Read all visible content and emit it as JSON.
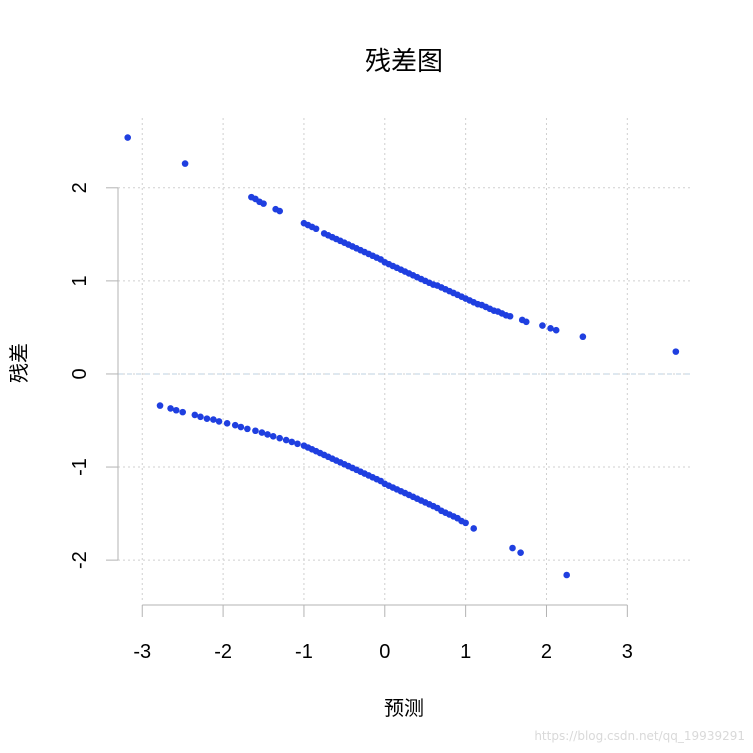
{
  "chart_data": {
    "type": "scatter",
    "title": "残差图",
    "xlabel": "预测",
    "ylabel": "残差",
    "xlim": [
      -3.3,
      3.8
    ],
    "ylim": [
      -2.45,
      2.75
    ],
    "xticks": [
      -3,
      -2,
      -1,
      0,
      1,
      2,
      3
    ],
    "yticks": [
      -2,
      -1,
      0,
      1,
      2
    ],
    "grid": true,
    "reference_line_y": 0,
    "point_color": "#1f3fe0",
    "watermark": "https://blog.csdn.net/qq_19939291",
    "series": [
      {
        "points": [
          [
            -3.18,
            2.54
          ],
          [
            -2.47,
            2.26
          ],
          [
            -1.65,
            1.9
          ],
          [
            -1.6,
            1.88
          ],
          [
            -1.55,
            1.85
          ],
          [
            -1.5,
            1.83
          ],
          [
            -1.35,
            1.77
          ],
          [
            -1.3,
            1.75
          ],
          [
            -1.0,
            1.62
          ],
          [
            -0.95,
            1.6
          ],
          [
            -0.9,
            1.58
          ],
          [
            -0.85,
            1.56
          ],
          [
            -0.75,
            1.51
          ],
          [
            -0.7,
            1.49
          ],
          [
            -0.65,
            1.47
          ],
          [
            -0.6,
            1.45
          ],
          [
            -0.55,
            1.43
          ],
          [
            -0.5,
            1.41
          ],
          [
            -0.45,
            1.39
          ],
          [
            -0.4,
            1.37
          ],
          [
            -0.35,
            1.35
          ],
          [
            -0.3,
            1.33
          ],
          [
            -0.25,
            1.31
          ],
          [
            -0.2,
            1.29
          ],
          [
            -0.15,
            1.27
          ],
          [
            -0.1,
            1.25
          ],
          [
            -0.05,
            1.23
          ],
          [
            0.0,
            1.2
          ],
          [
            0.05,
            1.18
          ],
          [
            0.1,
            1.16
          ],
          [
            0.15,
            1.14
          ],
          [
            0.2,
            1.12
          ],
          [
            0.25,
            1.1
          ],
          [
            0.3,
            1.08
          ],
          [
            0.35,
            1.06
          ],
          [
            0.4,
            1.04
          ],
          [
            0.45,
            1.02
          ],
          [
            0.5,
            1.0
          ],
          [
            0.55,
            0.98
          ],
          [
            0.6,
            0.96
          ],
          [
            0.65,
            0.95
          ],
          [
            0.7,
            0.93
          ],
          [
            0.75,
            0.91
          ],
          [
            0.8,
            0.89
          ],
          [
            0.85,
            0.87
          ],
          [
            0.9,
            0.85
          ],
          [
            0.95,
            0.83
          ],
          [
            1.0,
            0.81
          ],
          [
            1.05,
            0.79
          ],
          [
            1.1,
            0.77
          ],
          [
            1.15,
            0.75
          ],
          [
            1.2,
            0.74
          ],
          [
            1.25,
            0.72
          ],
          [
            1.3,
            0.7
          ],
          [
            1.35,
            0.68
          ],
          [
            1.4,
            0.67
          ],
          [
            1.45,
            0.65
          ],
          [
            1.5,
            0.63
          ],
          [
            1.55,
            0.62
          ],
          [
            1.7,
            0.58
          ],
          [
            1.75,
            0.56
          ],
          [
            1.95,
            0.52
          ],
          [
            2.05,
            0.49
          ],
          [
            2.12,
            0.47
          ],
          [
            2.45,
            0.4
          ],
          [
            3.6,
            0.24
          ],
          [
            -2.78,
            -0.34
          ],
          [
            -2.65,
            -0.37
          ],
          [
            -2.58,
            -0.39
          ],
          [
            -2.5,
            -0.41
          ],
          [
            -2.35,
            -0.44
          ],
          [
            -2.28,
            -0.46
          ],
          [
            -2.2,
            -0.48
          ],
          [
            -2.12,
            -0.49
          ],
          [
            -2.05,
            -0.51
          ],
          [
            -1.95,
            -0.53
          ],
          [
            -1.85,
            -0.55
          ],
          [
            -1.78,
            -0.57
          ],
          [
            -1.7,
            -0.59
          ],
          [
            -1.6,
            -0.61
          ],
          [
            -1.52,
            -0.63
          ],
          [
            -1.45,
            -0.65
          ],
          [
            -1.38,
            -0.67
          ],
          [
            -1.3,
            -0.69
          ],
          [
            -1.22,
            -0.71
          ],
          [
            -1.15,
            -0.73
          ],
          [
            -1.08,
            -0.75
          ],
          [
            -1.0,
            -0.77
          ],
          [
            -0.95,
            -0.79
          ],
          [
            -0.9,
            -0.81
          ],
          [
            -0.85,
            -0.83
          ],
          [
            -0.8,
            -0.85
          ],
          [
            -0.75,
            -0.87
          ],
          [
            -0.7,
            -0.89
          ],
          [
            -0.65,
            -0.91
          ],
          [
            -0.6,
            -0.93
          ],
          [
            -0.55,
            -0.95
          ],
          [
            -0.5,
            -0.97
          ],
          [
            -0.45,
            -0.99
          ],
          [
            -0.4,
            -1.01
          ],
          [
            -0.35,
            -1.03
          ],
          [
            -0.3,
            -1.05
          ],
          [
            -0.25,
            -1.07
          ],
          [
            -0.2,
            -1.09
          ],
          [
            -0.15,
            -1.11
          ],
          [
            -0.1,
            -1.13
          ],
          [
            -0.05,
            -1.15
          ],
          [
            0.0,
            -1.18
          ],
          [
            0.05,
            -1.2
          ],
          [
            0.1,
            -1.22
          ],
          [
            0.15,
            -1.24
          ],
          [
            0.2,
            -1.26
          ],
          [
            0.25,
            -1.28
          ],
          [
            0.3,
            -1.3
          ],
          [
            0.35,
            -1.32
          ],
          [
            0.4,
            -1.34
          ],
          [
            0.45,
            -1.36
          ],
          [
            0.5,
            -1.38
          ],
          [
            0.55,
            -1.4
          ],
          [
            0.6,
            -1.42
          ],
          [
            0.65,
            -1.44
          ],
          [
            0.7,
            -1.47
          ],
          [
            0.75,
            -1.49
          ],
          [
            0.8,
            -1.51
          ],
          [
            0.85,
            -1.53
          ],
          [
            0.9,
            -1.55
          ],
          [
            0.95,
            -1.58
          ],
          [
            1.0,
            -1.6
          ],
          [
            1.1,
            -1.66
          ],
          [
            1.58,
            -1.87
          ],
          [
            1.68,
            -1.92
          ],
          [
            2.25,
            -2.16
          ]
        ]
      }
    ]
  }
}
